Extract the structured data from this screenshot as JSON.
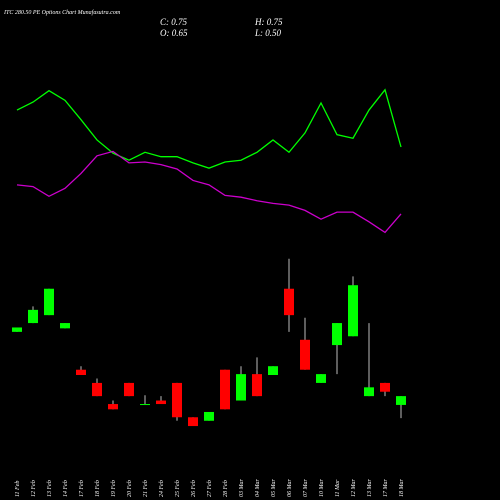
{
  "chart_data": {
    "type": "candlestick",
    "title": "ITC 280.50 PE Options Chart Munafasutra.com",
    "ohlc_text": {
      "close": "C: 0.75",
      "high": "H: 0.75",
      "open": "O: 0.65",
      "low": "L: 0.50"
    },
    "categories": [
      "11 Feb",
      "12 Feb",
      "13 Feb",
      "14 Feb",
      "17 Feb",
      "18 Feb",
      "19 Feb",
      "20 Feb",
      "21 Feb",
      "24 Feb",
      "25 Feb",
      "26 Feb",
      "27 Feb",
      "28 Feb",
      "03 Mar",
      "04 Mar",
      "05 Mar",
      "06 Mar",
      "07 Mar",
      "10 Mar",
      "11 Mar",
      "12 Mar",
      "13 Mar",
      "17 Mar",
      "18 Mar"
    ],
    "open": [
      1.48,
      1.58,
      1.67,
      1.52,
      1.05,
      0.9,
      0.66,
      0.9,
      0.66,
      0.7,
      0.9,
      0.51,
      0.47,
      1.05,
      0.7,
      1.0,
      0.99,
      1.97,
      1.39,
      0.9,
      1.33,
      1.43,
      0.75,
      0.9,
      0.65
    ],
    "high": [
      1.53,
      1.77,
      1.97,
      1.58,
      1.09,
      0.95,
      0.7,
      0.9,
      0.76,
      0.75,
      0.9,
      0.51,
      0.57,
      1.05,
      1.09,
      1.19,
      1.09,
      2.31,
      1.64,
      1.0,
      1.58,
      2.11,
      1.58,
      0.9,
      0.75
    ],
    "low": [
      1.48,
      1.58,
      1.67,
      1.52,
      0.99,
      0.75,
      0.6,
      0.75,
      0.66,
      0.66,
      0.47,
      0.41,
      0.47,
      0.6,
      0.7,
      0.75,
      0.99,
      1.48,
      1.05,
      0.9,
      1.0,
      1.43,
      0.75,
      0.75,
      0.5
    ],
    "close": [
      1.53,
      1.73,
      1.97,
      1.58,
      0.99,
      0.75,
      0.6,
      0.75,
      0.66,
      0.66,
      0.51,
      0.41,
      0.57,
      0.6,
      1.0,
      0.75,
      1.09,
      1.67,
      1.05,
      1.0,
      1.58,
      2.01,
      0.85,
      0.8,
      0.75
    ],
    "up_color": "#00ff00",
    "down_color": "#ff0000",
    "lines": [
      {
        "color": "#00ff00",
        "values": [
          4.0,
          4.09,
          4.22,
          4.11,
          3.89,
          3.66,
          3.51,
          3.43,
          3.52,
          3.47,
          3.47,
          3.4,
          3.34,
          3.41,
          3.43,
          3.52,
          3.66,
          3.52,
          3.74,
          4.08,
          3.72,
          3.68,
          4.0,
          4.23,
          3.58
        ]
      },
      {
        "color": "#cc00cc",
        "values": [
          3.15,
          3.13,
          3.02,
          3.11,
          3.28,
          3.48,
          3.53,
          3.4,
          3.41,
          3.38,
          3.33,
          3.2,
          3.15,
          3.03,
          3.01,
          2.97,
          2.94,
          2.92,
          2.86,
          2.76,
          2.84,
          2.84,
          2.73,
          2.61,
          2.82
        ]
      }
    ],
    "ylim": [
      -0.43,
      5.25
    ]
  }
}
